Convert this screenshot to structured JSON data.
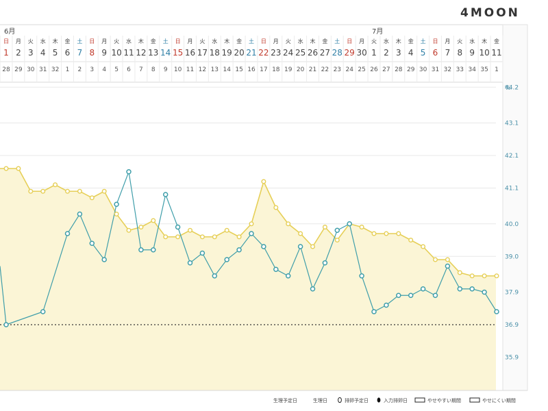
{
  "brand": "4MOON",
  "months": [
    {
      "label": "6月",
      "startIndex": 0
    },
    {
      "label": "7月",
      "startIndex": 30
    }
  ],
  "colors": {
    "weekday": "#444444",
    "saturday": "#2f7fa6",
    "sunday": "#c0392b",
    "temperature": "#e6cf57",
    "temperatureFill": "#fbf5d6",
    "weight": "#3f9eaa",
    "yaxis": "#4a90a8",
    "grid": "#e8e8e8",
    "reference": "#333333"
  },
  "chart_data": {
    "type": "line",
    "title": "",
    "ylabel": "%",
    "yticks": [
      44.2,
      43.1,
      42.1,
      41.1,
      40.0,
      39.0,
      37.9,
      36.9,
      35.9
    ],
    "ylim": [
      35.0,
      45.0
    ],
    "referenceLine": 36.9,
    "days": [
      {
        "d": "1",
        "w": "日"
      },
      {
        "d": "2",
        "w": "月"
      },
      {
        "d": "3",
        "w": "火"
      },
      {
        "d": "4",
        "w": "水"
      },
      {
        "d": "5",
        "w": "木"
      },
      {
        "d": "6",
        "w": "金"
      },
      {
        "d": "7",
        "w": "土"
      },
      {
        "d": "8",
        "w": "日"
      },
      {
        "d": "9",
        "w": "月"
      },
      {
        "d": "10",
        "w": "火"
      },
      {
        "d": "11",
        "w": "水"
      },
      {
        "d": "12",
        "w": "木"
      },
      {
        "d": "13",
        "w": "金"
      },
      {
        "d": "14",
        "w": "土"
      },
      {
        "d": "15",
        "w": "日"
      },
      {
        "d": "16",
        "w": "月"
      },
      {
        "d": "17",
        "w": "火"
      },
      {
        "d": "18",
        "w": "水"
      },
      {
        "d": "19",
        "w": "木"
      },
      {
        "d": "20",
        "w": "金"
      },
      {
        "d": "21",
        "w": "土"
      },
      {
        "d": "22",
        "w": "日"
      },
      {
        "d": "23",
        "w": "月"
      },
      {
        "d": "24",
        "w": "火"
      },
      {
        "d": "25",
        "w": "水"
      },
      {
        "d": "26",
        "w": "木"
      },
      {
        "d": "27",
        "w": "金"
      },
      {
        "d": "28",
        "w": "土"
      },
      {
        "d": "29",
        "w": "日"
      },
      {
        "d": "30",
        "w": "月"
      },
      {
        "d": "1",
        "w": "火"
      },
      {
        "d": "2",
        "w": "水"
      },
      {
        "d": "3",
        "w": "木"
      },
      {
        "d": "4",
        "w": "金"
      },
      {
        "d": "5",
        "w": "土"
      },
      {
        "d": "6",
        "w": "日"
      },
      {
        "d": "7",
        "w": "月"
      },
      {
        "d": "8",
        "w": "火"
      },
      {
        "d": "9",
        "w": "水"
      },
      {
        "d": "10",
        "w": "木"
      },
      {
        "d": "11",
        "w": "金"
      }
    ],
    "cycleDays": [
      "28",
      "29",
      "30",
      "31",
      "32",
      "1",
      "2",
      "3",
      "4",
      "5",
      "6",
      "7",
      "8",
      "9",
      "10",
      "11",
      "12",
      "13",
      "14",
      "15",
      "16",
      "17",
      "18",
      "19",
      "20",
      "21",
      "22",
      "23",
      "24",
      "25",
      "26",
      "27",
      "28",
      "29",
      "30",
      "31",
      "32",
      "33",
      "34",
      "35",
      "1"
    ],
    "periodMarkers": [
      5,
      6,
      7,
      8,
      9,
      10,
      11,
      40
    ],
    "series": [
      {
        "key": "temperature",
        "values": [
          41.7,
          41.7,
          41.0,
          41.0,
          41.2,
          41.0,
          41.0,
          40.8,
          41.0,
          40.3,
          39.8,
          39.9,
          40.1,
          39.6,
          39.6,
          39.8,
          39.6,
          39.6,
          39.8,
          39.6,
          40.0,
          41.3,
          40.5,
          40.0,
          39.7,
          39.3,
          39.9,
          39.5,
          40.0,
          39.9,
          39.7,
          39.7,
          39.7,
          39.5,
          39.3,
          38.9,
          38.9,
          38.5,
          38.4,
          38.4,
          38.4
        ]
      },
      {
        "key": "weight",
        "values": [
          36.9,
          null,
          null,
          37.3,
          null,
          39.7,
          40.3,
          39.4,
          38.9,
          40.6,
          41.6,
          39.2,
          39.2,
          40.9,
          39.9,
          38.8,
          39.1,
          38.4,
          38.9,
          39.2,
          39.7,
          39.3,
          38.6,
          38.4,
          39.3,
          38.0,
          38.8,
          39.8,
          40.0,
          38.4,
          37.3,
          37.5,
          37.8,
          37.8,
          38.0,
          37.8,
          38.7,
          38.0,
          38.0,
          37.9,
          37.3
        ]
      }
    ]
  },
  "legend": [
    {
      "icon": "predicted-period-icon",
      "label": "生理予定日"
    },
    {
      "icon": "period-icon",
      "label": "生理日"
    },
    {
      "icon": "predicted-ovulation-icon",
      "label": "排卵予定日"
    },
    {
      "icon": "ovulation-icon",
      "label": "入力排卵日"
    },
    {
      "icon": "easy-period-box",
      "label": "やせやすい期間"
    },
    {
      "icon": "hard-period-box",
      "label": "やせにくい期間"
    }
  ]
}
